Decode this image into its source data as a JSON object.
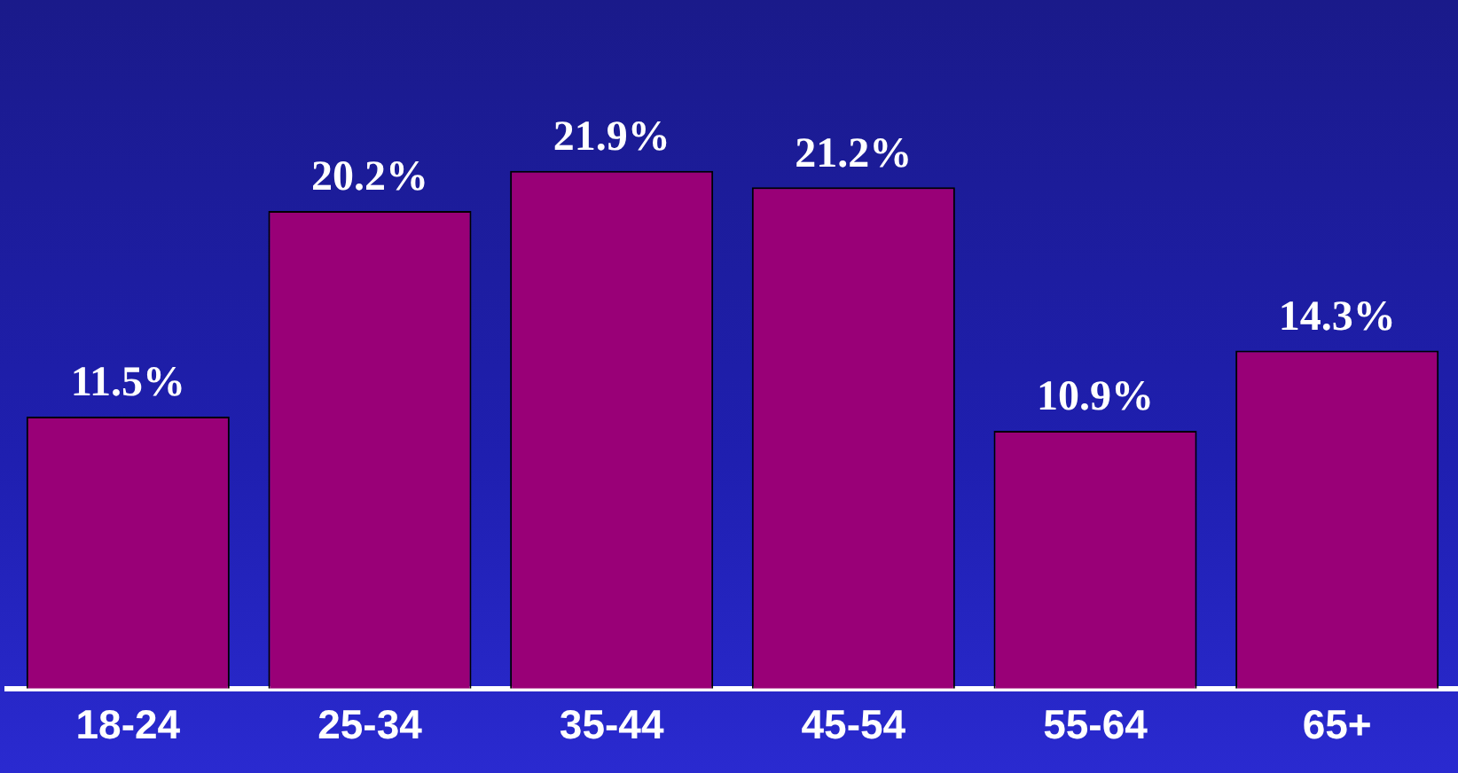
{
  "chart_data": {
    "type": "bar",
    "categories": [
      "18-24",
      "25-34",
      "35-44",
      "45-54",
      "55-64",
      "65+"
    ],
    "values": [
      11.5,
      20.2,
      21.9,
      21.2,
      10.9,
      14.3
    ],
    "value_labels": [
      "11.5%",
      "20.2%",
      "21.9%",
      "21.2%",
      "10.9%",
      "14.3%"
    ],
    "color": "#990077",
    "grid": false,
    "legend": false
  }
}
